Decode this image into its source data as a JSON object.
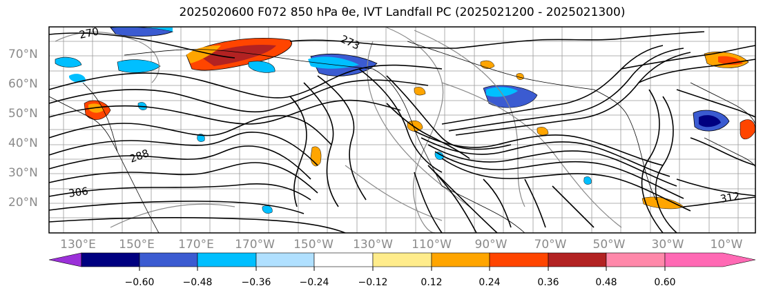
{
  "title": "2025020600 F072 850 hPa θe, IVT Landfall PC (2025021200 - 2025021300)",
  "lat_labels": [
    "70°N",
    "60°N",
    "50°N",
    "40°N",
    "30°N",
    "20°N"
  ],
  "lon_labels": [
    "130°E",
    "150°E",
    "170°E",
    "170°W",
    "150°W",
    "130°W",
    "110°W",
    "90°W",
    "70°W",
    "50°W",
    "30°W",
    "10°W"
  ],
  "contour_labels": [
    "270",
    "273",
    "288",
    "306",
    "312"
  ],
  "colorbar": {
    "tick_labels": [
      "−0.60",
      "−0.48",
      "−0.36",
      "−0.24",
      "−0.12",
      "0.12",
      "0.24",
      "0.36",
      "0.48",
      "0.60"
    ],
    "colors": [
      "#9b30d9",
      "#000080",
      "#3b5bd1",
      "#00bfff",
      "#b0e0ff",
      "#ffffff",
      "#ffec8b",
      "#ffa500",
      "#ff4500",
      "#b22222",
      "#ff88aa",
      "#ff69b4"
    ]
  },
  "anomaly_palette": {
    "strong_negative": "#3b5bd1",
    "negative": "#00bfff",
    "weak_negative": "#b0e0ff",
    "weak_positive": "#ffec8b",
    "positive": "#ffa500",
    "strong_positive": "#ff4500",
    "extreme_positive": "#b22222"
  }
}
